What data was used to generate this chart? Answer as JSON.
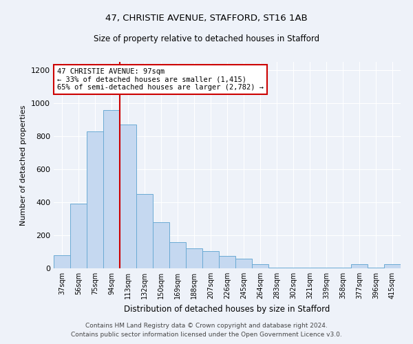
{
  "title1": "47, CHRISTIE AVENUE, STAFFORD, ST16 1AB",
  "title2": "Size of property relative to detached houses in Stafford",
  "xlabel": "Distribution of detached houses by size in Stafford",
  "ylabel": "Number of detached properties",
  "footer1": "Contains HM Land Registry data © Crown copyright and database right 2024.",
  "footer2": "Contains public sector information licensed under the Open Government Licence v3.0.",
  "categories": [
    "37sqm",
    "56sqm",
    "75sqm",
    "94sqm",
    "113sqm",
    "132sqm",
    "150sqm",
    "169sqm",
    "188sqm",
    "207sqm",
    "226sqm",
    "245sqm",
    "264sqm",
    "283sqm",
    "302sqm",
    "321sqm",
    "339sqm",
    "358sqm",
    "377sqm",
    "396sqm",
    "415sqm"
  ],
  "values": [
    80,
    390,
    830,
    960,
    870,
    450,
    280,
    160,
    120,
    105,
    75,
    60,
    25,
    5,
    5,
    5,
    5,
    5,
    25,
    5,
    25
  ],
  "bar_color": "#c5d8f0",
  "bar_edge_color": "#6aaad4",
  "bg_color": "#eef2f9",
  "grid_color": "#ffffff",
  "red_line_x": 3.5,
  "annotation_line1": "47 CHRISTIE AVENUE: 97sqm",
  "annotation_line2": "← 33% of detached houses are smaller (1,415)",
  "annotation_line3": "65% of semi-detached houses are larger (2,782) →",
  "annotation_box_color": "#ffffff",
  "annotation_box_edge": "#cc0000",
  "red_line_color": "#cc0000",
  "ylim": [
    0,
    1250
  ],
  "yticks": [
    0,
    200,
    400,
    600,
    800,
    1000,
    1200
  ]
}
